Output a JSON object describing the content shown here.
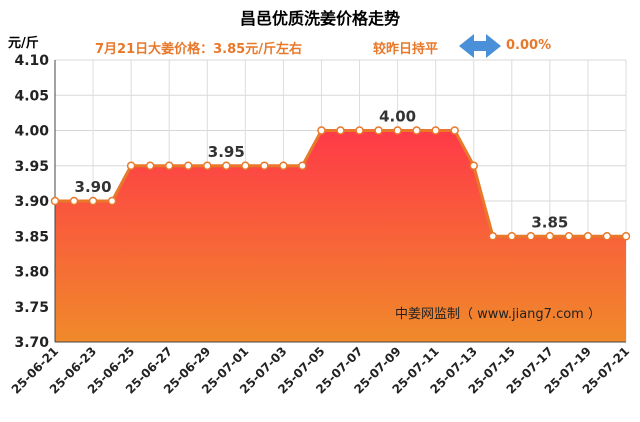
{
  "header": {
    "title": "昌邑优质洗姜价格走势",
    "unit": "元/斤",
    "price_note": "7月21日大姜价格：3.85元/斤左右",
    "compare_label": "较昨日持平",
    "change_pct": "0.00%"
  },
  "watermark": "中姜网监制（ www.jiang7.com ）",
  "colors": {
    "line": "#e8782a",
    "fill_top": "#ff3a48",
    "fill_bottom": "#f08a2a",
    "arrow": "#4a90d9"
  },
  "chart_data": {
    "type": "area",
    "title": "昌邑优质洗姜价格走势",
    "ylabel": "元/斤",
    "ylim": [
      3.7,
      4.1
    ],
    "yticks": [
      "4.10",
      "4.05",
      "4.00",
      "3.95",
      "3.90",
      "3.85",
      "3.80",
      "3.75",
      "3.70"
    ],
    "xtick_labels": [
      "25-06-21",
      "25-06-23",
      "25-06-25",
      "25-06-27",
      "25-06-29",
      "25-07-01",
      "25-07-03",
      "25-07-05",
      "25-07-07",
      "25-07-09",
      "25-07-11",
      "25-07-13",
      "25-07-15",
      "25-07-17",
      "25-07-19",
      "25-07-21"
    ],
    "x": [
      "25-06-21",
      "25-06-22",
      "25-06-23",
      "25-06-24",
      "25-06-25",
      "25-06-26",
      "25-06-27",
      "25-06-28",
      "25-06-29",
      "25-06-30",
      "25-07-01",
      "25-07-02",
      "25-07-03",
      "25-07-04",
      "25-07-05",
      "25-07-06",
      "25-07-07",
      "25-07-08",
      "25-07-09",
      "25-07-10",
      "25-07-11",
      "25-07-12",
      "25-07-13",
      "25-07-14",
      "25-07-15",
      "25-07-16",
      "25-07-17",
      "25-07-18",
      "25-07-19",
      "25-07-20",
      "25-07-21"
    ],
    "values": [
      3.9,
      3.9,
      3.9,
      3.9,
      3.95,
      3.95,
      3.95,
      3.95,
      3.95,
      3.95,
      3.95,
      3.95,
      3.95,
      3.95,
      4.0,
      4.0,
      4.0,
      4.0,
      4.0,
      4.0,
      4.0,
      4.0,
      3.95,
      3.85,
      3.85,
      3.85,
      3.85,
      3.85,
      3.85,
      3.85,
      3.85
    ],
    "annotations": [
      {
        "index": 2,
        "text": "3.90"
      },
      {
        "index": 9,
        "text": "3.95"
      },
      {
        "index": 18,
        "text": "4.00"
      },
      {
        "index": 26,
        "text": "3.85"
      }
    ],
    "grid": true
  }
}
